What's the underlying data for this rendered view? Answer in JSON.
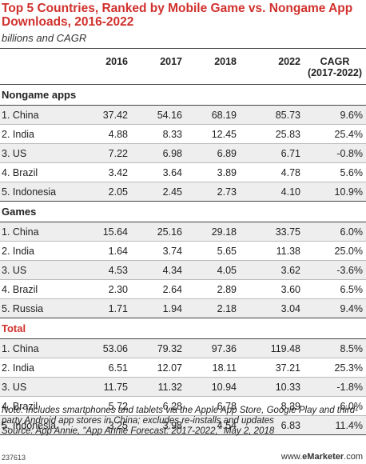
{
  "title": "Top 5 Countries, Ranked by Mobile Game vs. Nongame App Downloads, 2016-2022",
  "subtitle": "billions and CAGR",
  "chart_data": {
    "type": "table",
    "title": "Top 5 Countries, Ranked by Mobile Game vs. Nongame App Downloads, 2016-2022",
    "subtitle": "billions and CAGR",
    "columns": [
      "",
      "2016",
      "2017",
      "2018",
      "2022",
      "CAGR (2017-2022)"
    ],
    "sections": [
      {
        "name": "Nongame apps",
        "rows": [
          {
            "label": "1. China",
            "values": [
              "37.42",
              "54.16",
              "68.19",
              "85.73",
              "9.6%"
            ]
          },
          {
            "label": "2. India",
            "values": [
              "4.88",
              "8.33",
              "12.45",
              "25.83",
              "25.4%"
            ]
          },
          {
            "label": "3. US",
            "values": [
              "7.22",
              "6.98",
              "6.89",
              "6.71",
              "-0.8%"
            ]
          },
          {
            "label": "4. Brazil",
            "values": [
              "3.42",
              "3.64",
              "3.89",
              "4.78",
              "5.6%"
            ]
          },
          {
            "label": "5. Indonesia",
            "values": [
              "2.05",
              "2.45",
              "2.73",
              "4.10",
              "10.9%"
            ]
          }
        ]
      },
      {
        "name": "Games",
        "rows": [
          {
            "label": "1. China",
            "values": [
              "15.64",
              "25.16",
              "29.18",
              "33.75",
              "6.0%"
            ]
          },
          {
            "label": "2. India",
            "values": [
              "1.64",
              "3.74",
              "5.65",
              "11.38",
              "25.0%"
            ]
          },
          {
            "label": "3. US",
            "values": [
              "4.53",
              "4.34",
              "4.05",
              "3.62",
              "-3.6%"
            ]
          },
          {
            "label": "4. Brazil",
            "values": [
              "2.30",
              "2.64",
              "2.89",
              "3.60",
              "6.5%"
            ]
          },
          {
            "label": "5. Russia",
            "values": [
              "1.71",
              "1.94",
              "2.18",
              "3.04",
              "9.4%"
            ]
          }
        ]
      },
      {
        "name": "Total",
        "rows": [
          {
            "label": "1. China",
            "values": [
              "53.06",
              "79.32",
              "97.36",
              "119.48",
              "8.5%"
            ]
          },
          {
            "label": "2. India",
            "values": [
              "6.51",
              "12.07",
              "18.11",
              "37.21",
              "25.3%"
            ]
          },
          {
            "label": "3. US",
            "values": [
              "11.75",
              "11.32",
              "10.94",
              "10.33",
              "-1.8%"
            ]
          },
          {
            "label": "4. Brazil",
            "values": [
              "5.72",
              "6.28",
              "6.78",
              "8.39",
              "6.0%"
            ]
          },
          {
            "label": "5. Indonesia",
            "values": [
              "3.25",
              "3.98",
              "4.54",
              "6.83",
              "11.4%"
            ]
          }
        ]
      }
    ]
  },
  "header": {
    "col_2016": "2016",
    "col_2017": "2017",
    "col_2018": "2018",
    "col_2022": "2022",
    "col_cagr_line1": "CAGR",
    "col_cagr_line2": "(2017-2022)"
  },
  "note": "Note: includes smartphones and tablets via the Apple App Store, Google Play and third-party Android app stores in China; excludes re-installs and updates",
  "source": "Source: App Annie, \"App Annie Forecast: 2017-2022,\" May 2, 2018",
  "footer": {
    "chart_id": "237613",
    "brand_prefix": "www.",
    "brand_name": "eMarketer",
    "brand_suffix": ".com"
  },
  "colors": {
    "title": "#d0312d",
    "total_label": "#d0312d",
    "row_shade": "#eeeeee"
  }
}
